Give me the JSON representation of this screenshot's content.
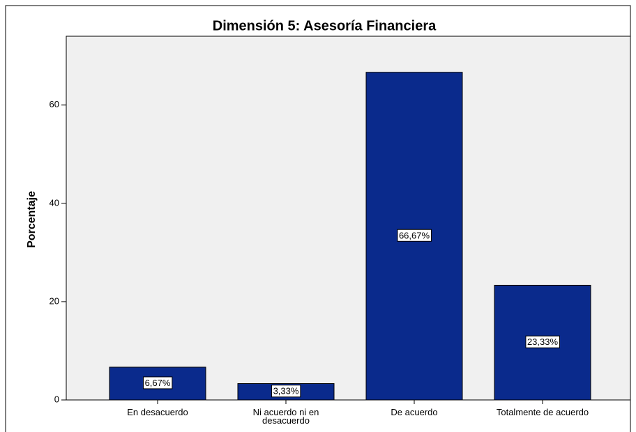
{
  "chart_data": {
    "type": "bar",
    "title": "Dimensión 5: Asesoría Financiera",
    "y_label": "Porcentaje",
    "categories": [
      "En desacuerdo",
      "Ni acuerdo ni en desacuerdo",
      "De acuerdo",
      "Totalmente de acuerdo"
    ],
    "values": [
      6.67,
      3.33,
      66.67,
      23.33
    ],
    "value_labels": [
      "6,67%",
      "3,33%",
      "66,67%",
      "23,33%"
    ],
    "color": "#0a2a8c",
    "ylim": [
      0,
      74
    ],
    "yticks": [
      0,
      20,
      40,
      60
    ]
  }
}
